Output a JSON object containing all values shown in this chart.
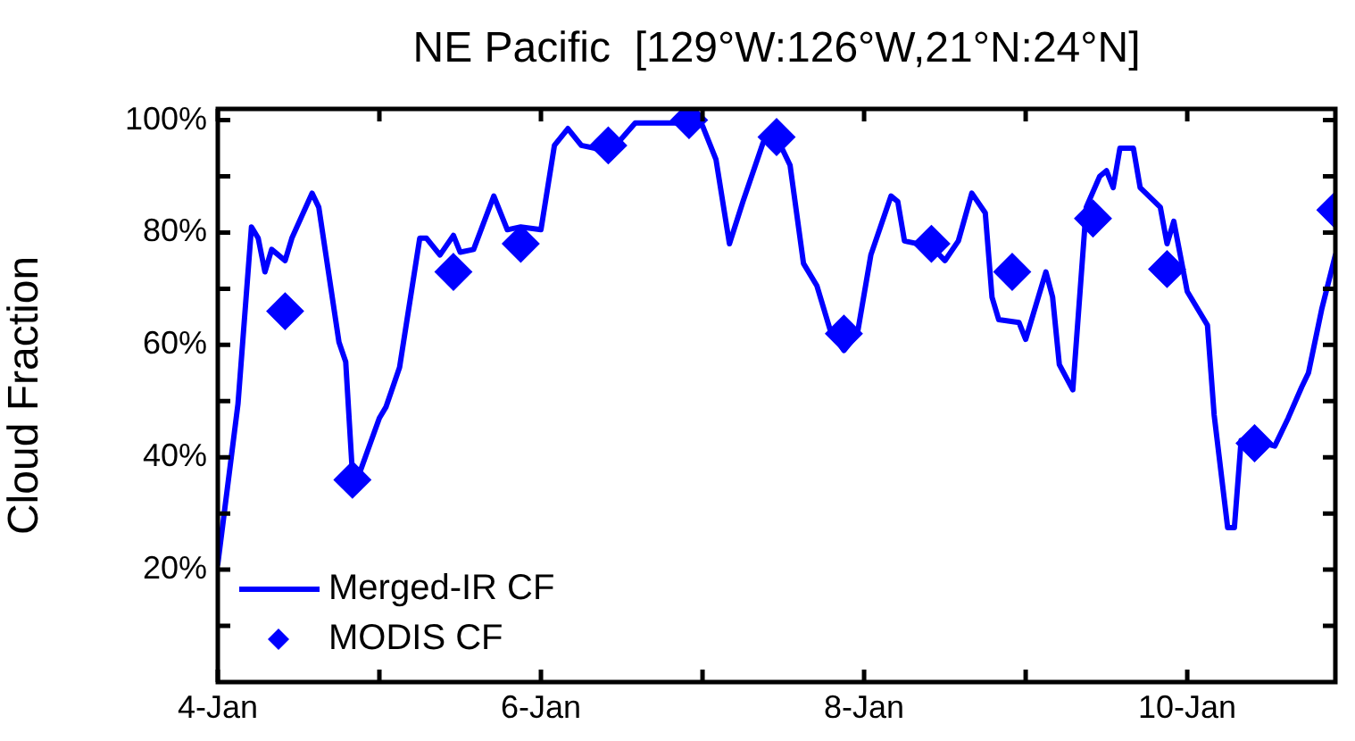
{
  "chart_data": {
    "type": "line",
    "title": "NE Pacific  [129°W:126°W,21°N:24°N]",
    "ylabel": "Cloud Fraction",
    "xlim": [
      "--01-04T00:00",
      "--01-10T22:00"
    ],
    "xticks": [
      {
        "value": "--01-04",
        "label": "4-Jan"
      },
      {
        "value": "--01-05",
        "label": null
      },
      {
        "value": "--01-06",
        "label": "6-Jan"
      },
      {
        "value": "--01-07",
        "label": null
      },
      {
        "value": "--01-08",
        "label": "8-Jan"
      },
      {
        "value": "--01-09",
        "label": null
      },
      {
        "value": "--01-10",
        "label": "10-Jan"
      }
    ],
    "ylim": [
      0,
      102
    ],
    "yticks": [
      {
        "value": 10,
        "label": null
      },
      {
        "value": 20,
        "label": "20%"
      },
      {
        "value": 30,
        "label": null
      },
      {
        "value": 40,
        "label": "40%"
      },
      {
        "value": 50,
        "label": null
      },
      {
        "value": 60,
        "label": "60%"
      },
      {
        "value": 70,
        "label": null
      },
      {
        "value": 80,
        "label": "80%"
      },
      {
        "value": 90,
        "label": null
      },
      {
        "value": 100,
        "label": "100%"
      }
    ],
    "grid": false,
    "legend": "bottom left",
    "series": [
      {
        "name": "Merged-IR CF",
        "type": "line",
        "color": "#0000ff",
        "marker": "none",
        "line_style": "solid",
        "x": [
          "--01-04T00:00",
          "--01-04T03:00",
          "--01-04T05:00",
          "--01-04T06:00",
          "--01-04T07:00",
          "--01-04T08:00",
          "--01-04T09:00",
          "--01-04T10:00",
          "--01-04T11:00",
          "--01-04T14:00",
          "--01-04T15:00",
          "--01-04T18:00",
          "--01-04T19:00",
          "--01-04T20:00",
          "--01-04T21:00",
          "--01-05T00:00",
          "--01-05T01:00",
          "--01-05T03:00",
          "--01-05T06:00",
          "--01-05T07:00",
          "--01-05T09:00",
          "--01-05T11:00",
          "--01-05T12:00",
          "--01-05T14:00",
          "--01-05T17:00",
          "--01-05T19:00",
          "--01-05T21:00",
          "--01-06T00:00",
          "--01-06T02:00",
          "--01-06T04:00",
          "--01-06T06:00",
          "--01-06T08:00",
          "--01-06T10:00",
          "--01-06T14:00",
          "--01-06T21:00",
          "--01-07T00:00",
          "--01-07T02:00",
          "--01-07T04:00",
          "--01-07T06:00",
          "--01-07T09:00",
          "--01-07T11:00",
          "--01-07T13:00",
          "--01-07T15:00",
          "--01-07T17:00",
          "--01-07T19:00",
          "--01-07T21:00",
          "--01-07T23:00",
          "--01-08T01:00",
          "--01-08T04:00",
          "--01-08T05:00",
          "--01-08T06:00",
          "--01-08T10:00",
          "--01-08T12:00",
          "--01-08T14:00",
          "--01-08T16:00",
          "--01-08T18:00",
          "--01-08T19:00",
          "--01-08T20:00",
          "--01-08T23:00",
          "--01-09T00:00",
          "--01-09T03:00",
          "--01-09T04:00",
          "--01-09T05:00",
          "--01-09T07:00",
          "--01-09T09:00",
          "--01-09T11:00",
          "--01-09T12:00",
          "--01-09T13:00",
          "--01-09T14:00",
          "--01-09T16:00",
          "--01-09T17:00",
          "--01-09T20:00",
          "--01-09T21:00",
          "--01-09T22:00",
          "--01-10T00:00",
          "--01-10T03:00",
          "--01-10T04:00",
          "--01-10T06:00",
          "--01-10T07:00",
          "--01-10T08:00",
          "--01-10T10:00",
          "--01-10T13:00",
          "--01-10T15:00",
          "--01-10T17:00",
          "--01-10T18:00",
          "--01-10T20:00",
          "--01-10T22:00"
        ],
        "values": [
          21,
          49.5,
          81,
          79,
          73,
          77,
          76,
          75,
          79,
          87,
          84.5,
          60.5,
          57,
          37,
          37,
          47,
          49,
          56,
          79,
          79,
          76,
          79.5,
          76.5,
          77,
          86.5,
          80.5,
          81,
          80.5,
          95.5,
          98.5,
          95.5,
          95,
          94,
          99.5,
          99.5,
          99,
          93,
          78,
          85.5,
          96,
          97,
          92,
          74.5,
          70.5,
          62.5,
          59,
          62,
          76,
          86.5,
          85.5,
          78.5,
          77.5,
          75,
          78.5,
          87,
          83.5,
          68.5,
          64.5,
          64,
          61,
          73,
          68.5,
          56.5,
          52,
          84.5,
          90,
          91,
          88,
          95,
          95,
          88,
          84.5,
          78,
          82,
          69.5,
          63.5,
          47.5,
          27.5,
          27.5,
          43,
          43,
          42,
          47,
          52.5,
          55,
          66.5,
          76
        ]
      },
      {
        "name": "MODIS CF",
        "type": "scatter",
        "color": "#0000ff",
        "marker": "diamond",
        "x": [
          "--01-04T10:00",
          "--01-04T20:00",
          "--01-05T11:00",
          "--01-05T21:00",
          "--01-06T10:00",
          "--01-06T22:00",
          "--01-07T11:00",
          "--01-07T21:00",
          "--01-08T10:00",
          "--01-08T22:00",
          "--01-09T10:00",
          "--01-09T21:00",
          "--01-10T10:00",
          "--01-10T22:00"
        ],
        "values": [
          66,
          36,
          73,
          78,
          95.5,
          100,
          97,
          62,
          78,
          73,
          82.5,
          73.5,
          42.5,
          84
        ]
      }
    ]
  }
}
